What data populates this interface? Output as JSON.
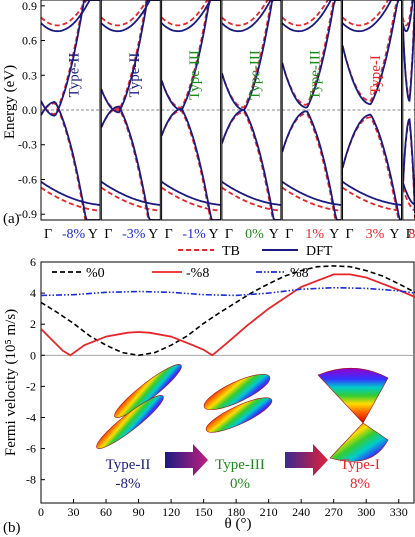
{
  "figure": {
    "panel_a_label": "(a)",
    "panel_b_label": "(b)",
    "legend_a": [
      {
        "label": "TB",
        "style": "dashed",
        "color": "#e8262a"
      },
      {
        "label": "DFT",
        "style": "solid",
        "color": "#1a1a80"
      }
    ],
    "legend_b": [
      {
        "label": "%0",
        "style": "dashed",
        "color": "#000000"
      },
      {
        "label": "-%8",
        "style": "solid",
        "color": "#e8262a"
      },
      {
        "label": "%8",
        "style": "dashdotdot",
        "color": "#1a2cd8"
      }
    ],
    "insets": [
      {
        "type_label": "Type-II",
        "strain_label": "-8%",
        "color": "#1a1a80"
      },
      {
        "type_label": "Type-III",
        "strain_label": "0%",
        "color": "#1e8a1e"
      },
      {
        "type_label": "Type-I",
        "strain_label": "8%",
        "color": "#e8262a"
      }
    ]
  },
  "chart_data": [
    {
      "type": "line",
      "ylabel": "Energy (eV)",
      "ylim": [
        -0.95,
        0.95
      ],
      "yticks": [
        "0.9",
        "0.6",
        "0.3",
        "0.0",
        "-0.3",
        "-0.6",
        "-0.9"
      ],
      "ytick_values": [
        0.9,
        0.6,
        0.3,
        0.0,
        -0.3,
        -0.6,
        -0.9
      ],
      "fermi_level": 0.0,
      "panels": [
        {
          "type_label": "Type-II",
          "strain": "-8%",
          "label_color": "#1a1a80",
          "strain_color": "#1a2cd8",
          "start_label": "Γ",
          "end_label": "Y",
          "crossing": 0.24,
          "upper_min": -0.05,
          "lower_max": 0.07
        },
        {
          "type_label": "Type-II",
          "strain": "-3%",
          "label_color": "#1a1a80",
          "strain_color": "#1a2cd8",
          "start_label": "Γ",
          "end_label": "Y",
          "crossing": 0.3,
          "upper_min": -0.02,
          "lower_max": 0.03
        },
        {
          "type_label": "Type-III",
          "strain": "-1%",
          "label_color": "#1e8a1e",
          "strain_color": "#1a2cd8",
          "start_label": "Γ",
          "end_label": "Y",
          "crossing": 0.34,
          "upper_min": 0.0,
          "lower_max": 0.01
        },
        {
          "type_label": "Type-III",
          "strain": "0%",
          "label_color": "#1e8a1e",
          "strain_color": "#1e8a1e",
          "start_label": "Γ",
          "end_label": "Y",
          "crossing": 0.38,
          "upper_min": 0.0,
          "lower_max": 0.0
        },
        {
          "type_label": "Type-III",
          "strain": "1%",
          "label_color": "#1e8a1e",
          "strain_color": "#e8262a",
          "start_label": "Γ",
          "end_label": "Y",
          "crossing": 0.42,
          "upper_min": 0.02,
          "lower_max": -0.01
        },
        {
          "type_label": "Type-I",
          "strain": "3%",
          "label_color": "#e8262a",
          "strain_color": "#e8262a",
          "start_label": "Γ",
          "end_label": "Y",
          "crossing": 0.48,
          "upper_min": 0.05,
          "lower_max": -0.04
        },
        {
          "type_label": "",
          "strain": "8",
          "label_color": "#e8262a",
          "strain_color": "#e8262a",
          "start_label": "Γ",
          "end_label": "",
          "crossing": 0.55,
          "upper_min": 0.08,
          "lower_max": -0.08
        }
      ],
      "series": [
        {
          "name": "TB",
          "style": "dashed",
          "color": "#e8262a"
        },
        {
          "name": "DFT",
          "style": "solid",
          "color": "#1a1a80"
        }
      ]
    },
    {
      "type": "line",
      "xlabel": "θ (°)",
      "ylabel": "Fermi velocity (10⁵ m/s)",
      "xlim": [
        0,
        345
      ],
      "ylim": [
        -9.5,
        6
      ],
      "xticks": [
        0,
        30,
        60,
        90,
        120,
        150,
        180,
        210,
        240,
        270,
        300,
        330
      ],
      "yticks": [
        6,
        4,
        2,
        0,
        -2,
        -4,
        -6,
        -8
      ],
      "legend_position": "top",
      "series": [
        {
          "name": "%0",
          "style": "dashed",
          "color": "#000000",
          "x": [
            0,
            15,
            30,
            45,
            60,
            75,
            90,
            105,
            120,
            135,
            150,
            165,
            180,
            195,
            210,
            225,
            240,
            255,
            270,
            285,
            300,
            315,
            330,
            345
          ],
          "y": [
            3.4,
            2.75,
            2.05,
            1.25,
            0.65,
            0.17,
            0.0,
            0.17,
            0.65,
            1.25,
            2.05,
            2.75,
            3.4,
            4.05,
            4.6,
            5.1,
            5.45,
            5.7,
            5.75,
            5.7,
            5.45,
            5.1,
            4.6,
            4.05
          ]
        },
        {
          "name": "-%8",
          "style": "solid",
          "color": "#e8262a",
          "x": [
            0,
            10,
            20,
            27,
            40,
            60,
            80,
            90,
            100,
            120,
            140,
            150,
            158,
            170,
            190,
            210,
            240,
            270,
            285,
            300,
            330,
            345
          ],
          "y": [
            1.7,
            1.0,
            0.3,
            0.0,
            0.65,
            1.2,
            1.45,
            1.5,
            1.45,
            1.2,
            0.65,
            0.35,
            0.0,
            0.7,
            1.9,
            3.0,
            4.4,
            5.2,
            5.2,
            5.0,
            4.2,
            3.75
          ]
        },
        {
          "name": "%8",
          "style": "dashdotdot",
          "color": "#1a2cd8",
          "x": [
            0,
            30,
            60,
            90,
            120,
            150,
            180,
            210,
            240,
            270,
            300,
            330,
            345
          ],
          "y": [
            3.85,
            3.9,
            4.05,
            4.1,
            4.05,
            3.9,
            3.85,
            4.0,
            4.25,
            4.35,
            4.3,
            4.15,
            4.0
          ]
        }
      ]
    }
  ]
}
